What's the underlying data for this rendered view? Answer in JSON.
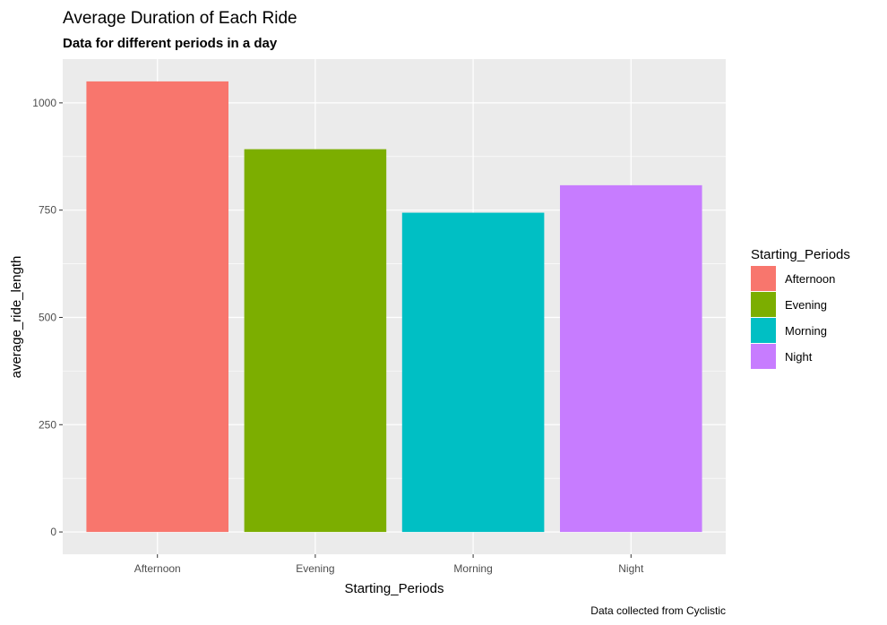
{
  "chart_data": {
    "type": "bar",
    "title": "Average Duration of Each Ride",
    "subtitle": "Data for different periods in a day",
    "caption": "Data collected from Cyclistic",
    "xlabel": "Starting_Periods",
    "ylabel": "average_ride_length",
    "categories": [
      "Afternoon",
      "Evening",
      "Morning",
      "Night"
    ],
    "values": [
      1050,
      892,
      744,
      808
    ],
    "colors": [
      "#F8766D",
      "#7CAE00",
      "#00BFC4",
      "#C77CFF"
    ],
    "ylim": [
      -52,
      1102
    ],
    "yticks": [
      0,
      250,
      500,
      750,
      1000
    ],
    "ytick_labels": [
      "0",
      "250",
      "500",
      "750",
      "1000"
    ],
    "grid": true,
    "legend": {
      "title": "Starting_Periods",
      "position": "right",
      "entries": [
        "Afternoon",
        "Evening",
        "Morning",
        "Night"
      ]
    }
  }
}
